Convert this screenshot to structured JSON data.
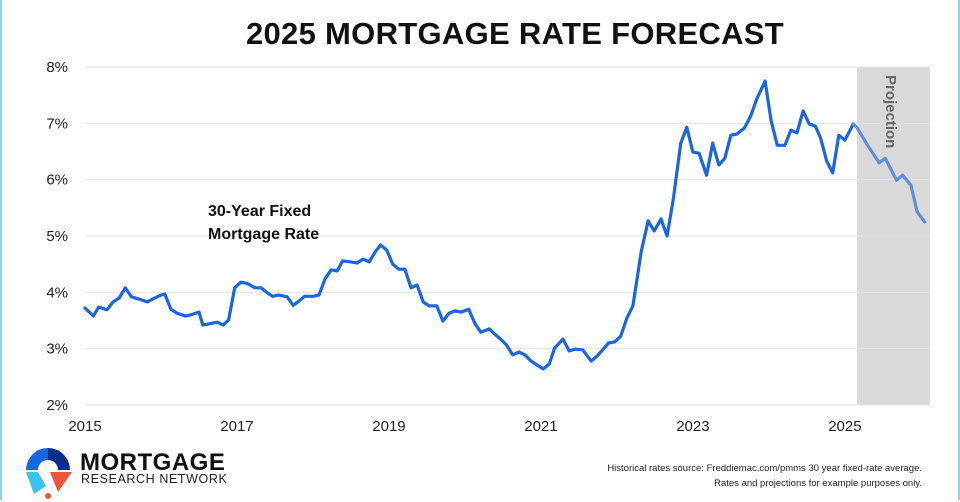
{
  "chart_data": {
    "type": "line",
    "title": "2025 MORTGAGE RATE FORECAST",
    "xlabel": "",
    "ylabel": "",
    "xlim": [
      2015,
      2026.12
    ],
    "ylim": [
      2,
      8
    ],
    "x_ticks": [
      2015,
      2017,
      2019,
      2021,
      2023,
      2025
    ],
    "x_tick_labels": [
      "2015",
      "2017",
      "2019",
      "2021",
      "2023",
      "2025"
    ],
    "y_ticks": [
      2,
      3,
      4,
      5,
      6,
      7,
      8
    ],
    "y_tick_labels": [
      "2%",
      "3%",
      "4%",
      "5%",
      "6%",
      "7%",
      "8%"
    ],
    "grid": "horizontal",
    "series_label_lines": [
      "30-Year Fixed",
      "Mortgage Rate"
    ],
    "projection_label": "Projection",
    "projection_start": 2025.16,
    "colors": {
      "historical": "#1a66e0",
      "projection": "#5f8fd6",
      "projection_shade": "#d9d9d9",
      "grid": "#e3e3e3"
    },
    "series": [
      {
        "kind": "historical",
        "points": [
          [
            2015.0,
            3.72
          ],
          [
            2015.11,
            3.58
          ],
          [
            2015.18,
            3.74
          ],
          [
            2015.29,
            3.69
          ],
          [
            2015.37,
            3.83
          ],
          [
            2015.45,
            3.9
          ],
          [
            2015.53,
            4.08
          ],
          [
            2015.61,
            3.92
          ],
          [
            2015.71,
            3.88
          ],
          [
            2015.82,
            3.83
          ],
          [
            2015.89,
            3.88
          ],
          [
            2016.0,
            3.95
          ],
          [
            2016.05,
            3.97
          ],
          [
            2016.13,
            3.7
          ],
          [
            2016.21,
            3.63
          ],
          [
            2016.32,
            3.58
          ],
          [
            2016.39,
            3.6
          ],
          [
            2016.5,
            3.65
          ],
          [
            2016.55,
            3.42
          ],
          [
            2016.63,
            3.44
          ],
          [
            2016.74,
            3.47
          ],
          [
            2016.82,
            3.42
          ],
          [
            2016.89,
            3.51
          ],
          [
            2016.97,
            4.08
          ],
          [
            2017.05,
            4.18
          ],
          [
            2017.13,
            4.16
          ],
          [
            2017.24,
            4.08
          ],
          [
            2017.32,
            4.08
          ],
          [
            2017.39,
            4.0
          ],
          [
            2017.47,
            3.93
          ],
          [
            2017.55,
            3.95
          ],
          [
            2017.66,
            3.92
          ],
          [
            2017.74,
            3.77
          ],
          [
            2017.82,
            3.85
          ],
          [
            2017.89,
            3.93
          ],
          [
            2018.0,
            3.93
          ],
          [
            2018.08,
            3.95
          ],
          [
            2018.16,
            4.24
          ],
          [
            2018.24,
            4.4
          ],
          [
            2018.32,
            4.38
          ],
          [
            2018.39,
            4.56
          ],
          [
            2018.5,
            4.54
          ],
          [
            2018.58,
            4.52
          ],
          [
            2018.66,
            4.59
          ],
          [
            2018.74,
            4.54
          ],
          [
            2018.82,
            4.72
          ],
          [
            2018.89,
            4.84
          ],
          [
            2018.97,
            4.75
          ],
          [
            2019.05,
            4.5
          ],
          [
            2019.13,
            4.41
          ],
          [
            2019.21,
            4.41
          ],
          [
            2019.29,
            4.08
          ],
          [
            2019.37,
            4.13
          ],
          [
            2019.45,
            3.83
          ],
          [
            2019.53,
            3.76
          ],
          [
            2019.63,
            3.76
          ],
          [
            2019.71,
            3.49
          ],
          [
            2019.79,
            3.63
          ],
          [
            2019.87,
            3.67
          ],
          [
            2019.95,
            3.65
          ],
          [
            2020.05,
            3.7
          ],
          [
            2020.13,
            3.45
          ],
          [
            2020.21,
            3.29
          ],
          [
            2020.32,
            3.35
          ],
          [
            2020.39,
            3.26
          ],
          [
            2020.47,
            3.17
          ],
          [
            2020.55,
            3.06
          ],
          [
            2020.63,
            2.89
          ],
          [
            2020.71,
            2.94
          ],
          [
            2020.79,
            2.89
          ],
          [
            2020.87,
            2.78
          ],
          [
            2020.95,
            2.71
          ],
          [
            2021.03,
            2.64
          ],
          [
            2021.11,
            2.73
          ],
          [
            2021.18,
            3.01
          ],
          [
            2021.29,
            3.17
          ],
          [
            2021.37,
            2.96
          ],
          [
            2021.45,
            2.99
          ],
          [
            2021.55,
            2.98
          ],
          [
            2021.66,
            2.78
          ],
          [
            2021.74,
            2.87
          ],
          [
            2021.82,
            2.99
          ],
          [
            2021.89,
            3.1
          ],
          [
            2021.97,
            3.12
          ],
          [
            2022.05,
            3.22
          ],
          [
            2022.13,
            3.54
          ],
          [
            2022.21,
            3.76
          ],
          [
            2022.32,
            4.72
          ],
          [
            2022.41,
            5.27
          ],
          [
            2022.49,
            5.09
          ],
          [
            2022.58,
            5.3
          ],
          [
            2022.66,
            5.0
          ],
          [
            2022.74,
            5.64
          ],
          [
            2022.84,
            6.65
          ],
          [
            2022.92,
            6.93
          ],
          [
            2023.0,
            6.49
          ],
          [
            2023.08,
            6.47
          ],
          [
            2023.18,
            6.08
          ],
          [
            2023.26,
            6.65
          ],
          [
            2023.34,
            6.26
          ],
          [
            2023.42,
            6.38
          ],
          [
            2023.5,
            6.79
          ],
          [
            2023.58,
            6.81
          ],
          [
            2023.68,
            6.92
          ],
          [
            2023.76,
            7.13
          ],
          [
            2023.84,
            7.43
          ],
          [
            2023.95,
            7.75
          ],
          [
            2024.03,
            7.04
          ],
          [
            2024.11,
            6.61
          ],
          [
            2024.21,
            6.61
          ],
          [
            2024.29,
            6.88
          ],
          [
            2024.37,
            6.83
          ],
          [
            2024.45,
            7.22
          ],
          [
            2024.53,
            6.99
          ],
          [
            2024.61,
            6.95
          ],
          [
            2024.68,
            6.74
          ],
          [
            2024.76,
            6.33
          ],
          [
            2024.84,
            6.12
          ],
          [
            2024.92,
            6.79
          ],
          [
            2025.0,
            6.7
          ],
          [
            2025.11,
            6.99
          ]
        ]
      },
      {
        "kind": "projection",
        "points": [
          [
            2025.11,
            6.99
          ],
          [
            2025.16,
            6.92
          ],
          [
            2025.29,
            6.63
          ],
          [
            2025.45,
            6.3
          ],
          [
            2025.53,
            6.38
          ],
          [
            2025.68,
            5.99
          ],
          [
            2025.76,
            6.08
          ],
          [
            2025.87,
            5.9
          ],
          [
            2025.95,
            5.43
          ],
          [
            2026.05,
            5.25
          ]
        ]
      }
    ]
  },
  "logo": {
    "name": "MORTGAGE",
    "subtitle": "RESEARCH NETWORK"
  },
  "footnote": {
    "line1": "Historical rates source: Freddiemac.com/pmms 30 year fixed-rate average.",
    "line2": "Rates and projections for example purposes only."
  }
}
